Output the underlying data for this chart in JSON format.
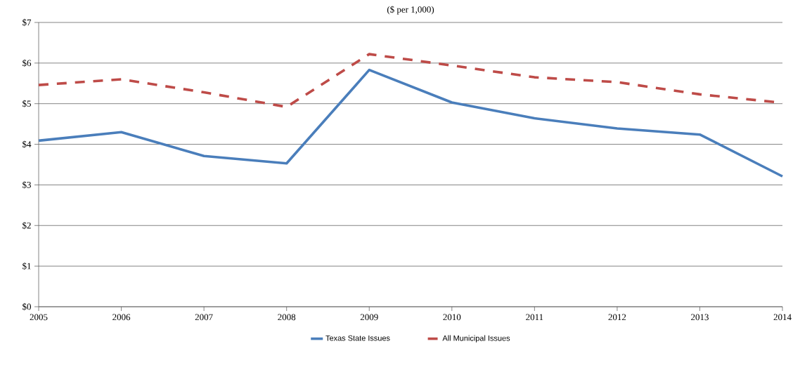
{
  "chart_data": {
    "type": "line",
    "title": "($ per 1,000)",
    "x": [
      2005,
      2006,
      2007,
      2008,
      2009,
      2010,
      2011,
      2012,
      2013,
      2014
    ],
    "series": [
      {
        "name": "Texas State Issues",
        "color": "#4a7ebb",
        "line_style": "solid",
        "values": [
          4.09,
          4.3,
          3.71,
          3.53,
          5.83,
          5.03,
          4.64,
          4.39,
          4.24,
          3.21
        ]
      },
      {
        "name": "All Municipal Issues",
        "color": "#be4b48",
        "line_style": "dashed",
        "values": [
          5.46,
          5.6,
          5.28,
          4.92,
          6.22,
          5.94,
          5.65,
          5.53,
          5.23,
          5.02
        ]
      }
    ],
    "xlim": [
      2005,
      2014
    ],
    "ylim": [
      0,
      7
    ],
    "xticks": [
      2005,
      2006,
      2007,
      2008,
      2009,
      2010,
      2011,
      2012,
      2013,
      2014
    ],
    "yticks": [
      {
        "value": 0,
        "label": "$0"
      },
      {
        "value": 1,
        "label": "$1"
      },
      {
        "value": 2,
        "label": "$2"
      },
      {
        "value": 3,
        "label": "$3"
      },
      {
        "value": 4,
        "label": "$4"
      },
      {
        "value": 5,
        "label": "$5"
      },
      {
        "value": 6,
        "label": "$6"
      },
      {
        "value": 7,
        "label": "$7"
      }
    ],
    "grid": "y",
    "legend": "bottom"
  }
}
